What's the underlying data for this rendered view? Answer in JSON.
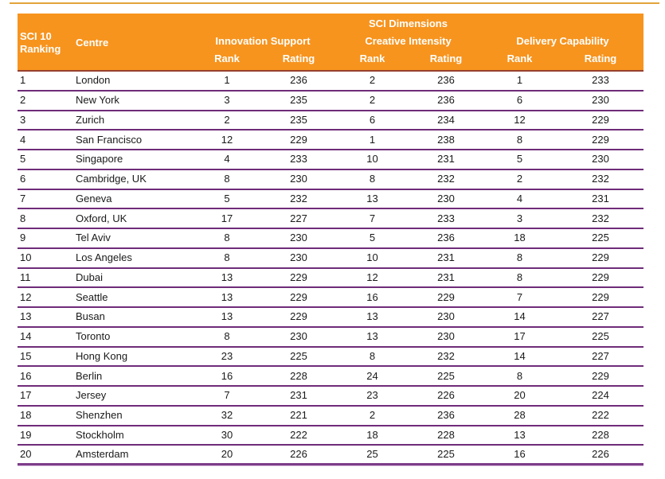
{
  "table": {
    "colors": {
      "header_bg": "#f7941e",
      "header_text": "#ffffff",
      "header_underline": "#97402f",
      "row_divider": "#6f2c79",
      "top_rule": "#e2a43c",
      "body_text": "#1a1a1a"
    },
    "header": {
      "ranking_label_line1": "SCI 10",
      "ranking_label_line2": "Ranking",
      "centre_label": "Centre",
      "dimensions_title": "SCI Dimensions",
      "groups": [
        {
          "label": "Innovation Support"
        },
        {
          "label": "Creative Intensity"
        },
        {
          "label": "Delivery Capability"
        }
      ],
      "rank_label": "Rank",
      "rating_label": "Rating"
    },
    "rows": [
      {
        "ranking": "1",
        "centre": "London",
        "is_rank": "1",
        "is_rating": "236",
        "ci_rank": "2",
        "ci_rating": "236",
        "dc_rank": "1",
        "dc_rating": "233"
      },
      {
        "ranking": "2",
        "centre": "New York",
        "is_rank": "3",
        "is_rating": "235",
        "ci_rank": "2",
        "ci_rating": "236",
        "dc_rank": "6",
        "dc_rating": "230"
      },
      {
        "ranking": "3",
        "centre": "Zurich",
        "is_rank": "2",
        "is_rating": "235",
        "ci_rank": "6",
        "ci_rating": "234",
        "dc_rank": "12",
        "dc_rating": "229"
      },
      {
        "ranking": "4",
        "centre": "San Francisco",
        "is_rank": "12",
        "is_rating": "229",
        "ci_rank": "1",
        "ci_rating": "238",
        "dc_rank": "8",
        "dc_rating": "229"
      },
      {
        "ranking": "5",
        "centre": "Singapore",
        "is_rank": "4",
        "is_rating": "233",
        "ci_rank": "10",
        "ci_rating": "231",
        "dc_rank": "5",
        "dc_rating": "230"
      },
      {
        "ranking": "6",
        "centre": "Cambridge, UK",
        "is_rank": "8",
        "is_rating": "230",
        "ci_rank": "8",
        "ci_rating": "232",
        "dc_rank": "2",
        "dc_rating": "232"
      },
      {
        "ranking": "7",
        "centre": "Geneva",
        "is_rank": "5",
        "is_rating": "232",
        "ci_rank": "13",
        "ci_rating": "230",
        "dc_rank": "4",
        "dc_rating": "231"
      },
      {
        "ranking": "8",
        "centre": "Oxford, UK",
        "is_rank": "17",
        "is_rating": "227",
        "ci_rank": "7",
        "ci_rating": "233",
        "dc_rank": "3",
        "dc_rating": "232"
      },
      {
        "ranking": "9",
        "centre": "Tel Aviv",
        "is_rank": "8",
        "is_rating": "230",
        "ci_rank": "5",
        "ci_rating": "236",
        "dc_rank": "18",
        "dc_rating": "225"
      },
      {
        "ranking": "10",
        "centre": "Los Angeles",
        "is_rank": "8",
        "is_rating": "230",
        "ci_rank": "10",
        "ci_rating": "231",
        "dc_rank": "8",
        "dc_rating": "229"
      },
      {
        "ranking": "11",
        "centre": "Dubai",
        "is_rank": "13",
        "is_rating": "229",
        "ci_rank": "12",
        "ci_rating": "231",
        "dc_rank": "8",
        "dc_rating": "229"
      },
      {
        "ranking": "12",
        "centre": "Seattle",
        "is_rank": "13",
        "is_rating": "229",
        "ci_rank": "16",
        "ci_rating": "229",
        "dc_rank": "7",
        "dc_rating": "229"
      },
      {
        "ranking": "13",
        "centre": "Busan",
        "is_rank": "13",
        "is_rating": "229",
        "ci_rank": "13",
        "ci_rating": "230",
        "dc_rank": "14",
        "dc_rating": "227"
      },
      {
        "ranking": "14",
        "centre": "Toronto",
        "is_rank": "8",
        "is_rating": "230",
        "ci_rank": "13",
        "ci_rating": "230",
        "dc_rank": "17",
        "dc_rating": "225"
      },
      {
        "ranking": "15",
        "centre": "Hong Kong",
        "is_rank": "23",
        "is_rating": "225",
        "ci_rank": "8",
        "ci_rating": "232",
        "dc_rank": "14",
        "dc_rating": "227"
      },
      {
        "ranking": "16",
        "centre": "Berlin",
        "is_rank": "16",
        "is_rating": "228",
        "ci_rank": "24",
        "ci_rating": "225",
        "dc_rank": "8",
        "dc_rating": "229"
      },
      {
        "ranking": "17",
        "centre": "Jersey",
        "is_rank": "7",
        "is_rating": "231",
        "ci_rank": "23",
        "ci_rating": "226",
        "dc_rank": "20",
        "dc_rating": "224"
      },
      {
        "ranking": "18",
        "centre": "Shenzhen",
        "is_rank": "32",
        "is_rating": "221",
        "ci_rank": "2",
        "ci_rating": "236",
        "dc_rank": "28",
        "dc_rating": "222"
      },
      {
        "ranking": "19",
        "centre": "Stockholm",
        "is_rank": "30",
        "is_rating": "222",
        "ci_rank": "18",
        "ci_rating": "228",
        "dc_rank": "13",
        "dc_rating": "228"
      },
      {
        "ranking": "20",
        "centre": "Amsterdam",
        "is_rank": "20",
        "is_rating": "226",
        "ci_rank": "25",
        "ci_rating": "225",
        "dc_rank": "16",
        "dc_rating": "226"
      }
    ]
  }
}
